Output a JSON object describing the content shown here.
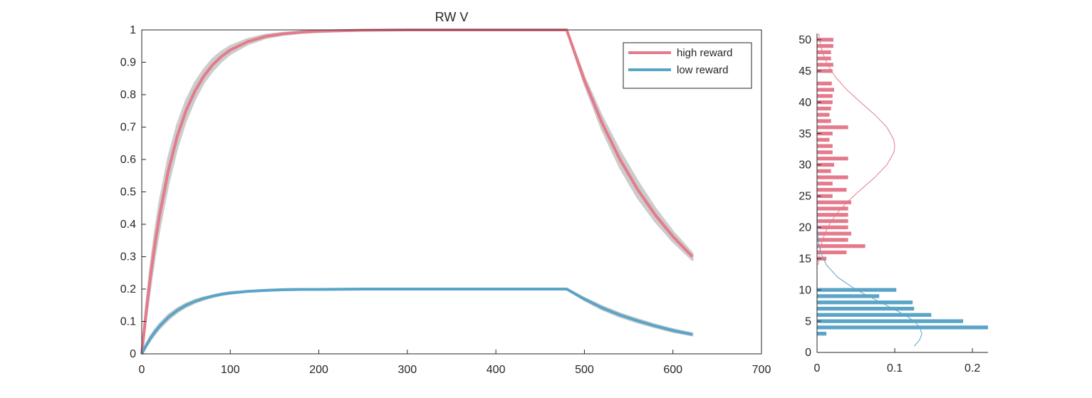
{
  "chart_data": [
    {
      "type": "line",
      "title": "RW  V",
      "x": [
        0,
        5,
        10,
        15,
        20,
        30,
        40,
        50,
        60,
        70,
        80,
        90,
        100,
        120,
        140,
        160,
        180,
        200,
        250,
        300,
        350,
        400,
        450,
        480,
        500,
        520,
        540,
        560,
        580,
        600,
        622
      ],
      "series": [
        {
          "name": "high reward",
          "color": "#e47a8b",
          "values": [
            0,
            0.13,
            0.243,
            0.341,
            0.426,
            0.565,
            0.671,
            0.751,
            0.811,
            0.857,
            0.892,
            0.918,
            0.938,
            0.964,
            0.98,
            0.988,
            0.993,
            0.996,
            0.999,
            1,
            1,
            1,
            1,
            1,
            0.844,
            0.712,
            0.601,
            0.508,
            0.429,
            0.362,
            0.3
          ],
          "upper": [
            0,
            0.15,
            0.273,
            0.376,
            0.466,
            0.605,
            0.706,
            0.781,
            0.836,
            0.877,
            0.91,
            0.933,
            0.95,
            0.972,
            0.985,
            0.991,
            0.995,
            0.998,
            0.999,
            1,
            1,
            1,
            1,
            1,
            0.854,
            0.732,
            0.626,
            0.533,
            0.449,
            0.377,
            0.31
          ],
          "lower": [
            0,
            0.11,
            0.213,
            0.306,
            0.386,
            0.525,
            0.636,
            0.721,
            0.786,
            0.837,
            0.874,
            0.903,
            0.926,
            0.956,
            0.975,
            0.985,
            0.991,
            0.994,
            0.999,
            1,
            1,
            1,
            1,
            1,
            0.834,
            0.692,
            0.576,
            0.483,
            0.409,
            0.347,
            0.29
          ]
        },
        {
          "name": "low reward",
          "color": "#5aa4c7",
          "values": [
            0,
            0.026,
            0.049,
            0.068,
            0.085,
            0.113,
            0.134,
            0.15,
            0.162,
            0.171,
            0.178,
            0.184,
            0.188,
            0.193,
            0.196,
            0.198,
            0.199,
            0.199,
            0.2,
            0.2,
            0.2,
            0.2,
            0.2,
            0.2,
            0.169,
            0.142,
            0.12,
            0.102,
            0.086,
            0.072,
            0.06
          ],
          "upper": [
            0,
            0.03,
            0.055,
            0.075,
            0.092,
            0.12,
            0.14,
            0.155,
            0.166,
            0.174,
            0.18,
            0.186,
            0.19,
            0.194,
            0.197,
            0.199,
            0.2,
            0.2,
            0.2,
            0.2,
            0.2,
            0.2,
            0.2,
            0.2,
            0.172,
            0.147,
            0.125,
            0.107,
            0.09,
            0.076,
            0.063
          ],
          "lower": [
            0,
            0.022,
            0.043,
            0.061,
            0.078,
            0.106,
            0.128,
            0.145,
            0.158,
            0.168,
            0.176,
            0.182,
            0.186,
            0.192,
            0.195,
            0.197,
            0.198,
            0.198,
            0.2,
            0.2,
            0.2,
            0.2,
            0.2,
            0.2,
            0.166,
            0.137,
            0.115,
            0.097,
            0.082,
            0.068,
            0.057
          ]
        }
      ],
      "band_color": "#cccccc",
      "xlim": [
        0,
        700
      ],
      "xticks": [
        0,
        100,
        200,
        300,
        400,
        500,
        600,
        700
      ],
      "ylim": [
        0,
        1
      ],
      "yticks": [
        0,
        0.1,
        0.2,
        0.3,
        0.4,
        0.5,
        0.6,
        0.7,
        0.8,
        0.9,
        1
      ],
      "legend": "northeast",
      "grid": false
    },
    {
      "type": "hbar",
      "series": [
        {
          "color": "#e47a8b",
          "y": [
            15,
            16,
            17,
            18,
            19,
            20,
            21,
            22,
            23,
            24,
            25,
            26,
            27,
            28,
            29,
            30,
            31,
            32,
            33,
            34,
            35,
            36,
            37,
            38,
            39,
            40,
            41,
            42,
            43,
            44,
            45,
            46,
            47,
            48,
            49,
            50
          ],
          "values": [
            0.012,
            0.038,
            0.062,
            0.04,
            0.044,
            0.04,
            0.04,
            0.04,
            0.04,
            0.044,
            0.02,
            0.038,
            0.02,
            0.04,
            0.018,
            0.022,
            0.04,
            0.02,
            0.02,
            0.016,
            0.02,
            0.04,
            0.018,
            0.016,
            0.018,
            0.02,
            0.02,
            0.022,
            0.019,
            0,
            0.02,
            0.021,
            0.018,
            0.018,
            0.021,
            0.021
          ],
          "fit_y": [
            14,
            16,
            18,
            20,
            22,
            24,
            26,
            28,
            30,
            32,
            33,
            34,
            36,
            38,
            40,
            42,
            44,
            46,
            48,
            50,
            51
          ],
          "fit_values": [
            0.0014,
            0.0033,
            0.007,
            0.0135,
            0.0239,
            0.0383,
            0.056,
            0.0744,
            0.0899,
            0.0988,
            0.1,
            0.0988,
            0.0899,
            0.0744,
            0.056,
            0.0383,
            0.0239,
            0.0135,
            0.007,
            0.0033,
            0.0022
          ]
        },
        {
          "color": "#5aa4c7",
          "y": [
            3,
            4,
            5,
            6,
            7,
            8,
            9,
            10
          ],
          "values": [
            0.012,
            0.22,
            0.188,
            0.147,
            0.125,
            0.123,
            0.08,
            0.102
          ],
          "fit_y": [
            1,
            2,
            3,
            4,
            5,
            6,
            8,
            10,
            12,
            14,
            16,
            18,
            20,
            25,
            30,
            40,
            50
          ],
          "fit_values": [
            0.125,
            0.132,
            0.135,
            0.132,
            0.125,
            0.113,
            0.082,
            0.0506,
            0.0267,
            0.012,
            0.0046,
            0.0015,
            0.0004,
            0,
            0,
            0,
            0
          ]
        }
      ],
      "xlim": [
        0,
        0.22
      ],
      "xticks": [
        0,
        0.1,
        0.2
      ],
      "ylim": [
        0,
        51
      ],
      "yticks": [
        0,
        5,
        10,
        15,
        20,
        25,
        30,
        35,
        40,
        45,
        50
      ],
      "grid": false
    }
  ]
}
